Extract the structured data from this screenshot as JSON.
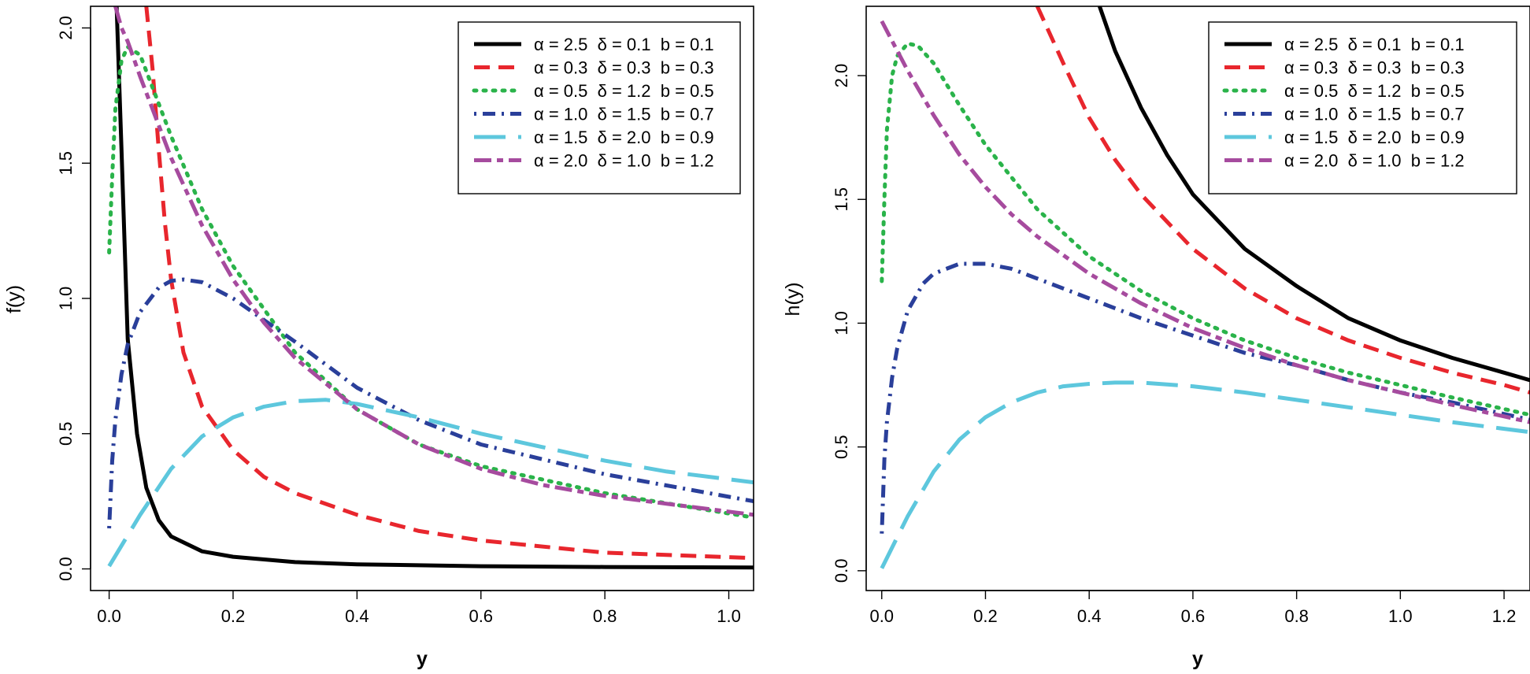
{
  "chart_data": [
    {
      "type": "line",
      "ylabel": "f(y)",
      "xlabel": "y",
      "xlim": [
        -0.03,
        1.04
      ],
      "ylim": [
        -0.08,
        2.08
      ],
      "xticks": [
        0.0,
        0.2,
        0.4,
        0.6,
        0.8,
        1.0
      ],
      "xtick_labels": [
        "0.0",
        "0.2",
        "0.4",
        "0.6",
        "0.8",
        "1.0"
      ],
      "yticks": [
        0.0,
        0.5,
        1.0,
        1.5,
        2.0
      ],
      "ytick_labels": [
        "0.0",
        "0.5",
        "1.0",
        "1.5",
        "2.0"
      ],
      "legend_position": "top-right",
      "series": [
        {
          "name": "α = 2.5  δ = 0.1  b = 0.1",
          "color": "#000000",
          "dash": "solid",
          "x": [
            0.012,
            0.02,
            0.03,
            0.045,
            0.06,
            0.08,
            0.1,
            0.15,
            0.2,
            0.3,
            0.4,
            0.6,
            0.8,
            1.04
          ],
          "y": [
            2.08,
            1.55,
            0.85,
            0.5,
            0.3,
            0.18,
            0.12,
            0.065,
            0.045,
            0.025,
            0.017,
            0.01,
            0.007,
            0.005
          ]
        },
        {
          "name": "α = 0.3  δ = 0.3  b = 0.3",
          "color": "#e8262d",
          "dash": "dash",
          "x": [
            0.06,
            0.07,
            0.08,
            0.09,
            0.1,
            0.12,
            0.15,
            0.2,
            0.25,
            0.3,
            0.4,
            0.5,
            0.6,
            0.8,
            1.04
          ],
          "y": [
            2.08,
            1.85,
            1.55,
            1.28,
            1.07,
            0.8,
            0.6,
            0.44,
            0.34,
            0.28,
            0.2,
            0.14,
            0.105,
            0.06,
            0.04
          ]
        },
        {
          "name": "α = 0.5  δ = 1.2  b = 0.5",
          "color": "#2ab34a",
          "dash": "dot",
          "x": [
            0.0,
            0.005,
            0.01,
            0.02,
            0.03,
            0.05,
            0.07,
            0.1,
            0.15,
            0.2,
            0.3,
            0.4,
            0.5,
            0.6,
            0.8,
            1.04
          ],
          "y": [
            1.17,
            1.45,
            1.7,
            1.88,
            1.93,
            1.9,
            1.78,
            1.6,
            1.33,
            1.12,
            0.8,
            0.59,
            0.46,
            0.38,
            0.28,
            0.19
          ]
        },
        {
          "name": "α = 1.0  δ = 1.5  b = 0.7",
          "color": "#2a3f9a",
          "dash": "dashdot",
          "x": [
            0.0,
            0.005,
            0.01,
            0.02,
            0.03,
            0.05,
            0.08,
            0.1,
            0.12,
            0.15,
            0.2,
            0.3,
            0.4,
            0.5,
            0.6,
            0.8,
            1.04
          ],
          "y": [
            0.15,
            0.4,
            0.55,
            0.72,
            0.83,
            0.95,
            1.04,
            1.065,
            1.07,
            1.06,
            1.0,
            0.84,
            0.67,
            0.55,
            0.46,
            0.35,
            0.25
          ]
        },
        {
          "name": "α = 1.5  δ = 2.0  b = 0.9",
          "color": "#5dc7dd",
          "dash": "longdash",
          "x": [
            0.0,
            0.05,
            0.1,
            0.15,
            0.2,
            0.25,
            0.3,
            0.35,
            0.4,
            0.5,
            0.6,
            0.7,
            0.8,
            0.9,
            1.04
          ],
          "y": [
            0.01,
            0.2,
            0.37,
            0.49,
            0.56,
            0.6,
            0.62,
            0.625,
            0.61,
            0.56,
            0.5,
            0.45,
            0.4,
            0.36,
            0.32
          ]
        },
        {
          "name": "α = 2.0  δ = 1.0  b = 1.2",
          "color": "#a64b9e",
          "dash": "twodash",
          "x": [
            0.01,
            0.02,
            0.03,
            0.05,
            0.07,
            0.1,
            0.15,
            0.2,
            0.25,
            0.3,
            0.4,
            0.5,
            0.6,
            0.7,
            0.8,
            1.04
          ],
          "y": [
            2.08,
            2.0,
            1.95,
            1.82,
            1.7,
            1.52,
            1.27,
            1.07,
            0.91,
            0.78,
            0.59,
            0.46,
            0.37,
            0.31,
            0.27,
            0.2
          ]
        }
      ]
    },
    {
      "type": "line",
      "ylabel": "h(y)",
      "xlabel": "y",
      "xlim": [
        -0.03,
        1.25
      ],
      "ylim": [
        -0.08,
        2.28
      ],
      "xticks": [
        0.0,
        0.2,
        0.4,
        0.6,
        0.8,
        1.0,
        1.2
      ],
      "xtick_labels": [
        "0.0",
        "0.2",
        "0.4",
        "0.6",
        "0.8",
        "1.0",
        "1.2"
      ],
      "yticks": [
        0.0,
        0.5,
        1.0,
        1.5,
        2.0
      ],
      "ytick_labels": [
        "0.0",
        "0.5",
        "1.0",
        "1.5",
        "2.0"
      ],
      "legend_position": "top-right",
      "series": [
        {
          "name": "α = 2.5  δ = 0.1  b = 0.1",
          "color": "#000000",
          "dash": "solid",
          "x": [
            0.42,
            0.45,
            0.5,
            0.55,
            0.6,
            0.7,
            0.8,
            0.9,
            1.0,
            1.1,
            1.2,
            1.25
          ],
          "y": [
            2.28,
            2.1,
            1.87,
            1.68,
            1.52,
            1.3,
            1.15,
            1.02,
            0.93,
            0.86,
            0.8,
            0.77
          ]
        },
        {
          "name": "α = 0.3  δ = 0.3  b = 0.3",
          "color": "#e8262d",
          "dash": "dash",
          "x": [
            0.3,
            0.35,
            0.4,
            0.45,
            0.5,
            0.6,
            0.7,
            0.8,
            0.9,
            1.0,
            1.1,
            1.2,
            1.25
          ],
          "y": [
            2.28,
            2.05,
            1.83,
            1.66,
            1.52,
            1.3,
            1.14,
            1.02,
            0.93,
            0.86,
            0.8,
            0.75,
            0.72
          ]
        },
        {
          "name": "α = 0.5  δ = 1.2  b = 0.5",
          "color": "#2ab34a",
          "dash": "dot",
          "x": [
            0.0,
            0.005,
            0.01,
            0.02,
            0.03,
            0.05,
            0.07,
            0.1,
            0.15,
            0.2,
            0.3,
            0.4,
            0.5,
            0.6,
            0.7,
            0.8,
            0.9,
            1.0,
            1.1,
            1.25
          ],
          "y": [
            1.17,
            1.5,
            1.78,
            2.0,
            2.08,
            2.13,
            2.12,
            2.05,
            1.88,
            1.72,
            1.46,
            1.27,
            1.13,
            1.02,
            0.93,
            0.86,
            0.8,
            0.75,
            0.7,
            0.63
          ]
        },
        {
          "name": "α = 1.0  δ = 1.5  b = 0.7",
          "color": "#2a3f9a",
          "dash": "dashdot",
          "x": [
            0.0,
            0.005,
            0.01,
            0.02,
            0.03,
            0.05,
            0.08,
            0.1,
            0.15,
            0.2,
            0.25,
            0.3,
            0.4,
            0.5,
            0.6,
            0.7,
            0.8,
            0.9,
            1.0,
            1.1,
            1.25
          ],
          "y": [
            0.15,
            0.45,
            0.6,
            0.78,
            0.9,
            1.05,
            1.16,
            1.2,
            1.24,
            1.24,
            1.22,
            1.18,
            1.1,
            1.02,
            0.95,
            0.88,
            0.83,
            0.77,
            0.72,
            0.68,
            0.61
          ]
        },
        {
          "name": "α = 1.5  δ = 2.0  b = 0.9",
          "color": "#5dc7dd",
          "dash": "longdash",
          "x": [
            0.0,
            0.05,
            0.1,
            0.15,
            0.2,
            0.25,
            0.3,
            0.35,
            0.4,
            0.45,
            0.5,
            0.6,
            0.7,
            0.8,
            0.9,
            1.0,
            1.1,
            1.25
          ],
          "y": [
            0.01,
            0.22,
            0.4,
            0.53,
            0.62,
            0.68,
            0.72,
            0.745,
            0.755,
            0.76,
            0.76,
            0.745,
            0.72,
            0.69,
            0.66,
            0.63,
            0.6,
            0.56
          ]
        },
        {
          "name": "α = 2.0  δ = 1.0  b = 1.2",
          "color": "#a64b9e",
          "dash": "twodash",
          "x": [
            0.0,
            0.02,
            0.05,
            0.1,
            0.15,
            0.2,
            0.25,
            0.3,
            0.4,
            0.5,
            0.6,
            0.7,
            0.8,
            0.9,
            1.0,
            1.1,
            1.25
          ],
          "y": [
            2.22,
            2.14,
            2.02,
            1.84,
            1.68,
            1.55,
            1.44,
            1.35,
            1.2,
            1.08,
            0.98,
            0.9,
            0.83,
            0.77,
            0.72,
            0.67,
            0.6
          ]
        }
      ]
    }
  ]
}
